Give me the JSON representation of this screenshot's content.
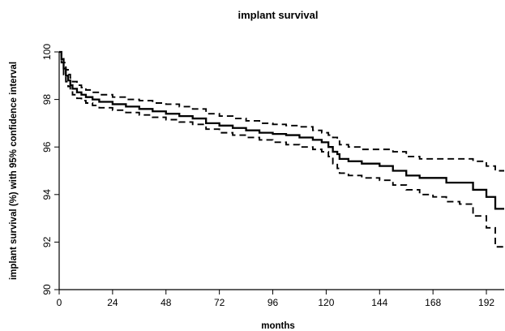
{
  "chart_data": {
    "type": "line",
    "title": "implant survival",
    "xlabel": "months",
    "ylabel": "implant survival (%) with 95% confidence interval",
    "xlim": [
      0,
      200
    ],
    "ylim": [
      90,
      100
    ],
    "x_ticks": [
      0,
      24,
      48,
      72,
      96,
      120,
      144,
      168,
      192
    ],
    "y_ticks": [
      90,
      92,
      94,
      96,
      98,
      100
    ],
    "grid": false,
    "legend": "none",
    "series": [
      {
        "role": "estimate",
        "line_style": "solid",
        "color": "#000000",
        "step": true,
        "x": [
          0,
          1,
          2,
          3,
          4,
          5,
          6,
          8,
          10,
          12,
          15,
          18,
          24,
          30,
          36,
          42,
          48,
          54,
          60,
          66,
          72,
          78,
          84,
          90,
          96,
          102,
          108,
          114,
          118,
          121,
          123,
          125,
          126,
          130,
          136,
          144,
          150,
          156,
          162,
          168,
          174,
          180,
          186,
          192,
          196,
          200
        ],
        "y": [
          100,
          99.7,
          99.3,
          99.0,
          98.8,
          98.6,
          98.45,
          98.3,
          98.2,
          98.1,
          98.0,
          97.9,
          97.8,
          97.7,
          97.6,
          97.5,
          97.4,
          97.3,
          97.2,
          97.0,
          96.9,
          96.8,
          96.7,
          96.6,
          96.55,
          96.5,
          96.4,
          96.3,
          96.2,
          96.0,
          95.8,
          95.7,
          95.5,
          95.4,
          95.3,
          95.2,
          95.0,
          94.8,
          94.7,
          94.7,
          94.5,
          94.5,
          94.2,
          93.9,
          93.4,
          93.4
        ]
      },
      {
        "role": "upper 95% confidence limit",
        "line_style": "dashed",
        "color": "#000000",
        "step": true,
        "x": [
          0,
          1,
          2,
          3,
          4,
          5,
          6,
          8,
          10,
          12,
          15,
          18,
          24,
          30,
          36,
          42,
          48,
          54,
          60,
          66,
          72,
          78,
          84,
          90,
          96,
          102,
          108,
          114,
          118,
          121,
          123,
          125,
          126,
          130,
          136,
          144,
          150,
          156,
          162,
          168,
          174,
          180,
          186,
          192,
          196,
          200
        ],
        "y": [
          100,
          99.85,
          99.55,
          99.25,
          99.05,
          98.9,
          98.75,
          98.6,
          98.5,
          98.4,
          98.3,
          98.2,
          98.1,
          98.0,
          97.95,
          97.85,
          97.8,
          97.7,
          97.6,
          97.4,
          97.3,
          97.2,
          97.1,
          97.0,
          96.95,
          96.9,
          96.85,
          96.7,
          96.6,
          96.5,
          96.4,
          96.3,
          96.1,
          96.0,
          95.9,
          95.9,
          95.8,
          95.6,
          95.5,
          95.5,
          95.5,
          95.5,
          95.4,
          95.2,
          95.0,
          95.0
        ]
      },
      {
        "role": "lower 95% confidence limit",
        "line_style": "dashed",
        "color": "#000000",
        "step": true,
        "x": [
          0,
          1,
          2,
          3,
          4,
          5,
          6,
          8,
          10,
          12,
          15,
          18,
          24,
          30,
          36,
          42,
          48,
          54,
          60,
          66,
          72,
          78,
          84,
          90,
          96,
          102,
          108,
          114,
          118,
          121,
          123,
          125,
          126,
          130,
          136,
          144,
          150,
          156,
          162,
          168,
          174,
          180,
          186,
          192,
          196,
          200
        ],
        "y": [
          100,
          99.55,
          99.05,
          98.75,
          98.55,
          98.35,
          98.2,
          98.05,
          97.95,
          97.85,
          97.75,
          97.65,
          97.55,
          97.45,
          97.35,
          97.25,
          97.15,
          97.05,
          96.95,
          96.75,
          96.6,
          96.5,
          96.4,
          96.3,
          96.2,
          96.1,
          96.0,
          95.9,
          95.8,
          95.6,
          95.3,
          95.1,
          94.9,
          94.8,
          94.7,
          94.6,
          94.4,
          94.2,
          94.0,
          93.9,
          93.7,
          93.6,
          93.1,
          92.6,
          91.8,
          91.8
        ]
      }
    ]
  }
}
